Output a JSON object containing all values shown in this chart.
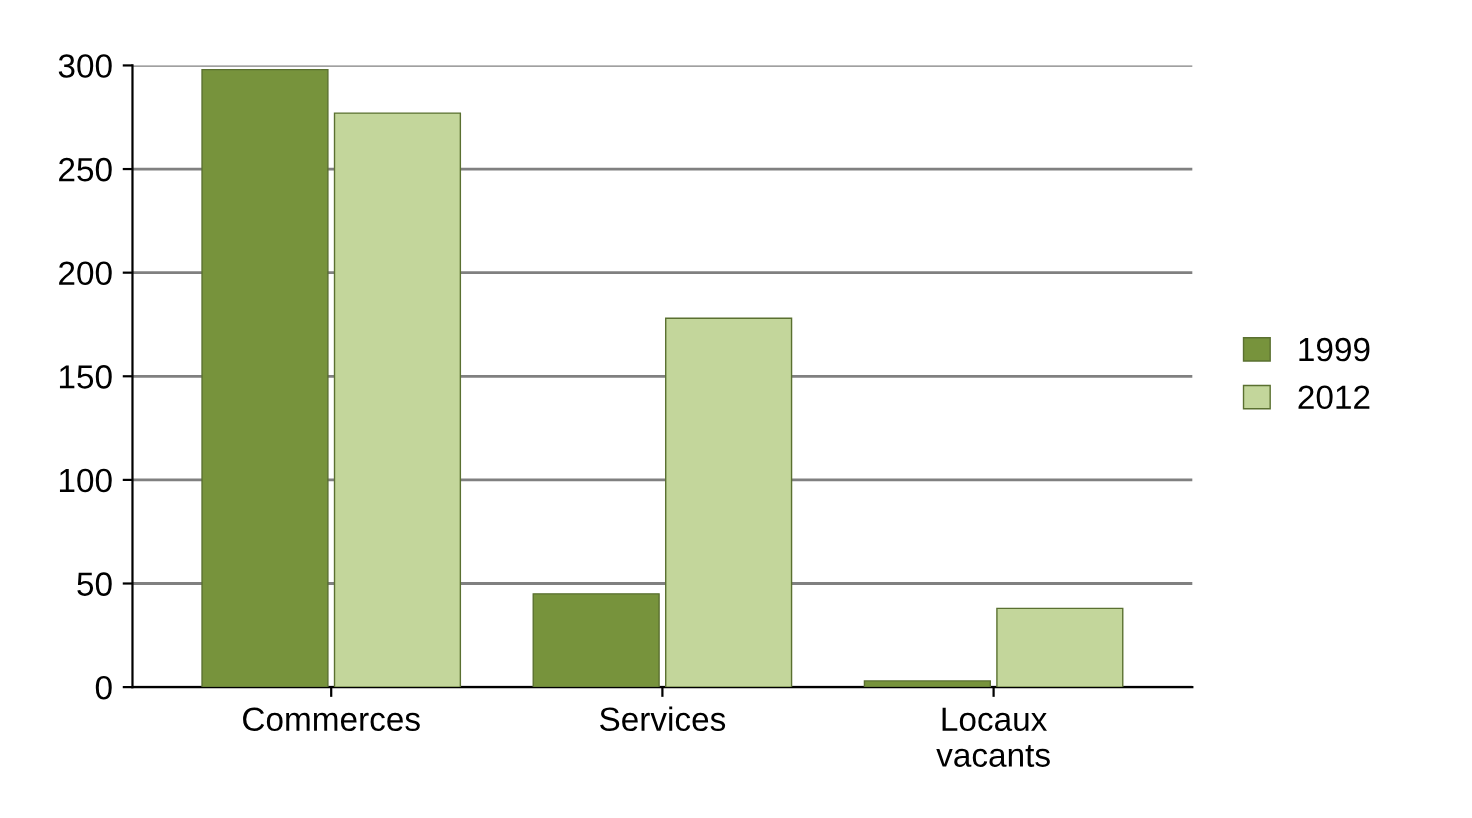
{
  "chart_data": {
    "type": "bar",
    "categories": [
      "Commerces",
      "Services",
      "Locaux\nvacants"
    ],
    "series": [
      {
        "name": "1999",
        "color": "#77933c",
        "values": [
          298,
          45,
          3
        ]
      },
      {
        "name": "2012",
        "color": "#c3d69b",
        "values": [
          277,
          178,
          38
        ]
      }
    ],
    "ylim": [
      0,
      300
    ],
    "yticks": [
      0,
      50,
      100,
      150,
      200,
      250,
      300
    ],
    "grid": "y",
    "legend": "right"
  }
}
